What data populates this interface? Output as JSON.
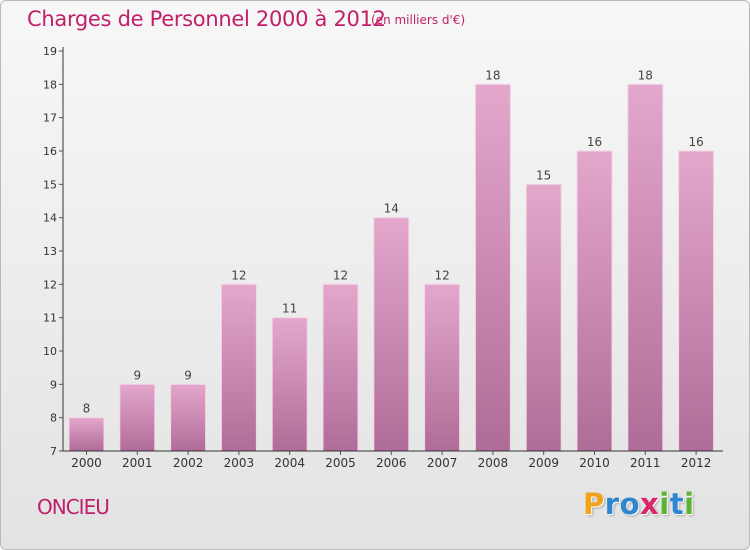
{
  "header": {
    "title": "Charges de Personnel 2000 à 2012",
    "subtitle": "(en milliers d'€)"
  },
  "footer": {
    "commune": "ONCIEU",
    "brand": "Proxiti",
    "brand_letters": [
      {
        "ch": "P",
        "color": "#f2a31b"
      },
      {
        "ch": "r",
        "color": "#2e86d1"
      },
      {
        "ch": "o",
        "color": "#2e86d1"
      },
      {
        "ch": "x",
        "color": "#d8256b"
      },
      {
        "ch": "i",
        "color": "#5bb432"
      },
      {
        "ch": "t",
        "color": "#2e86d1"
      },
      {
        "ch": "i",
        "color": "#5bb432"
      }
    ]
  },
  "colors": {
    "title": "#c0206a",
    "bar_top": "#e4a7cc",
    "bar_bottom": "#b06c98",
    "axis": "#333333"
  },
  "chart_data": {
    "type": "bar",
    "title": "Charges de Personnel 2000 à 2012",
    "subtitle": "(en milliers d'€)",
    "categories": [
      "2000",
      "2001",
      "2002",
      "2003",
      "2004",
      "2005",
      "2006",
      "2007",
      "2008",
      "2009",
      "2010",
      "2011",
      "2012"
    ],
    "values": [
      8,
      9,
      9,
      12,
      11,
      12,
      14,
      12,
      18,
      15,
      16,
      18,
      16
    ],
    "ylim": [
      7,
      19
    ],
    "yticks": [
      7,
      8,
      9,
      10,
      11,
      12,
      13,
      14,
      15,
      16,
      17,
      18,
      19
    ],
    "grid": false,
    "legend": "none"
  }
}
